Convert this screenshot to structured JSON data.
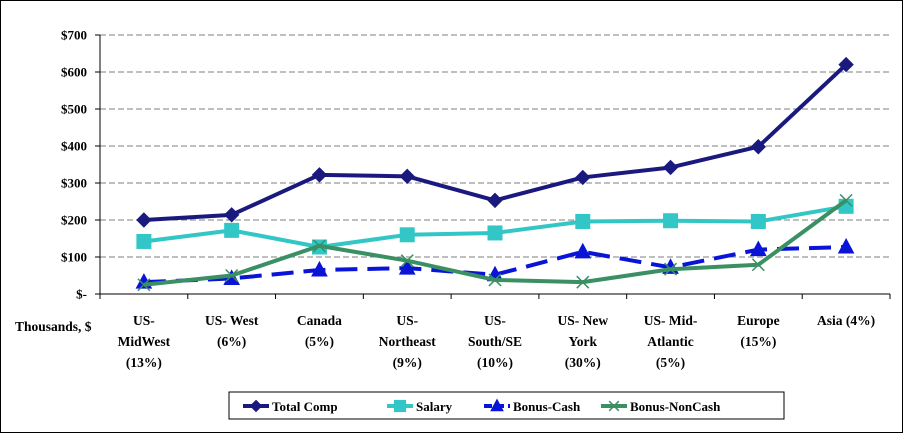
{
  "chart_data": {
    "type": "line",
    "ylabel": "Thousands, $",
    "ylim": [
      0,
      700
    ],
    "yticks": [
      "$-",
      "$100",
      "$200",
      "$300",
      "$400",
      "$500",
      "$600",
      "$700"
    ],
    "ytick_values": [
      0,
      100,
      200,
      300,
      400,
      500,
      600,
      700
    ],
    "grid": true,
    "legend_position": "bottom",
    "categories": [
      [
        "US-",
        "MidWest",
        "(13%)"
      ],
      [
        "US- West",
        "(6%)"
      ],
      [
        "Canada",
        "(5%)"
      ],
      [
        "US-",
        "Northeast",
        "(9%)"
      ],
      [
        "US-",
        "South/SE",
        "(10%)"
      ],
      [
        "US- New",
        "York",
        "(30%)"
      ],
      [
        "US- Mid-",
        "Atlantic",
        "(5%)"
      ],
      [
        "Europe",
        "(15%)"
      ],
      [
        "Asia (4%)"
      ]
    ],
    "series": [
      {
        "name": "Total Comp",
        "color": "#1a1a7e",
        "marker": "diamond",
        "dash": "solid",
        "values": [
          200,
          214,
          322,
          318,
          253,
          315,
          342,
          398,
          620
        ]
      },
      {
        "name": "Salary",
        "color": "#33c6c6",
        "marker": "square",
        "dash": "solid",
        "values": [
          142,
          172,
          127,
          160,
          165,
          196,
          198,
          196,
          237
        ]
      },
      {
        "name": "Bonus-Cash",
        "color": "#0a14d6",
        "marker": "triangle",
        "dash": "dashed",
        "values": [
          32,
          42,
          65,
          70,
          52,
          114,
          72,
          120,
          127
        ]
      },
      {
        "name": "Bonus-NonCash",
        "color": "#3a8f63",
        "marker": "x",
        "dash": "solid",
        "values": [
          25,
          50,
          130,
          90,
          38,
          32,
          67,
          79,
          253
        ]
      }
    ]
  }
}
